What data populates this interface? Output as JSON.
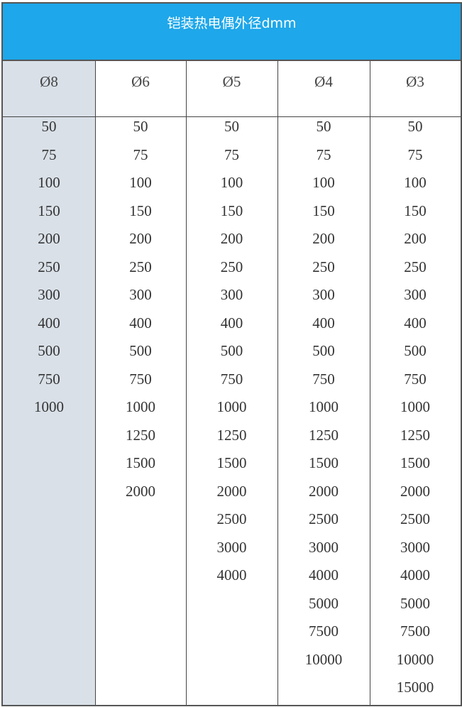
{
  "title": "铠装热电偶外径dmm",
  "columns": [
    {
      "header": "Ø8",
      "values": [
        "50",
        "75",
        "100",
        "150",
        "200",
        "250",
        "300",
        "400",
        "500",
        "750",
        "1000"
      ]
    },
    {
      "header": "Ø6",
      "values": [
        "50",
        "75",
        "100",
        "150",
        "200",
        "250",
        "300",
        "400",
        "500",
        "750",
        "1000",
        "1250",
        "1500",
        "2000"
      ]
    },
    {
      "header": "Ø5",
      "values": [
        "50",
        "75",
        "100",
        "150",
        "200",
        "250",
        "300",
        "400",
        "500",
        "750",
        "1000",
        "1250",
        "1500",
        "2000",
        "2500",
        "3000",
        "4000"
      ]
    },
    {
      "header": "Ø4",
      "values": [
        "50",
        "75",
        "100",
        "150",
        "200",
        "250",
        "300",
        "400",
        "500",
        "750",
        "1000",
        "1250",
        "1500",
        "2000",
        "2500",
        "3000",
        "4000",
        "5000",
        "7500",
        "10000"
      ]
    },
    {
      "header": "Ø3",
      "values": [
        "50",
        "75",
        "100",
        "150",
        "200",
        "250",
        "300",
        "400",
        "500",
        "750",
        "1000",
        "1250",
        "1500",
        "2000",
        "2500",
        "3000",
        "4000",
        "5000",
        "7500",
        "10000",
        "15000"
      ]
    }
  ],
  "colors": {
    "title_bg": "#1ea7ea",
    "first_column_bg": "#d9e0e8"
  }
}
